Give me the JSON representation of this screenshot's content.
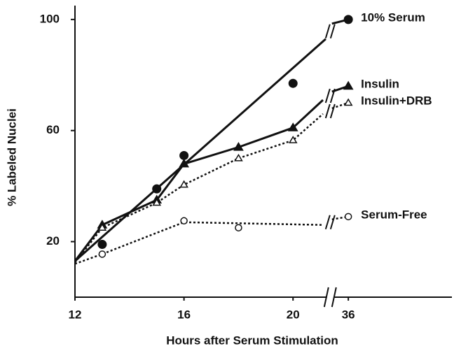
{
  "chart_data": {
    "type": "line",
    "x_label": "Hours after Serum Stimulation",
    "y_label": "% Labeled Nuclei",
    "xlim": [
      12,
      39.8
    ],
    "x_break": [
      21.3,
      35.4
    ],
    "xticks": [
      12,
      16,
      20,
      36
    ],
    "ylim": [
      0,
      105
    ],
    "yticks": [
      20,
      60,
      100
    ],
    "grid": false,
    "series": [
      {
        "name": "10% Serum",
        "color": "#111111",
        "marker": "circle",
        "filled": true,
        "line_style": "solid",
        "x": [
          13,
          15,
          16,
          20,
          36
        ],
        "values": [
          19,
          39,
          51,
          77,
          100
        ],
        "line_x": [
          12,
          21.2,
          35.4,
          36
        ],
        "line_values": [
          13,
          93,
          98.5,
          100
        ]
      },
      {
        "name": "Insulin",
        "color": "#111111",
        "marker": "triangle",
        "filled": true,
        "line_style": "solid",
        "x": [
          13,
          15,
          16,
          18,
          20,
          36
        ],
        "values": [
          26,
          35,
          48,
          54,
          61,
          76
        ],
        "line_x": [
          12,
          13,
          15,
          16,
          18,
          20,
          21.1,
          35.4,
          36
        ],
        "line_values": [
          13,
          26,
          35,
          48,
          54,
          61,
          71,
          74,
          76
        ]
      },
      {
        "name": "Insulin+DRB",
        "color": "#111111",
        "marker": "triangle",
        "filled": false,
        "line_style": "dotted",
        "x": [
          13,
          15,
          16,
          18,
          20,
          36
        ],
        "values": [
          25,
          34,
          40.5,
          50,
          56.5,
          70
        ],
        "line_x": [
          12,
          13,
          15,
          16,
          18,
          20,
          21.1,
          35.4,
          36
        ],
        "line_values": [
          12.5,
          25,
          34,
          40.5,
          50,
          56.5,
          66,
          68,
          70
        ]
      },
      {
        "name": "Serum-Free",
        "color": "#111111",
        "marker": "circle",
        "filled": false,
        "line_style": "dotted",
        "x": [
          13,
          16,
          18,
          36
        ],
        "values": [
          15.5,
          27.5,
          25,
          29
        ],
        "line_x": [
          12,
          13,
          16,
          21.1,
          35.4,
          36
        ],
        "line_values": [
          12,
          15.5,
          27,
          26,
          28,
          29
        ]
      }
    ]
  }
}
